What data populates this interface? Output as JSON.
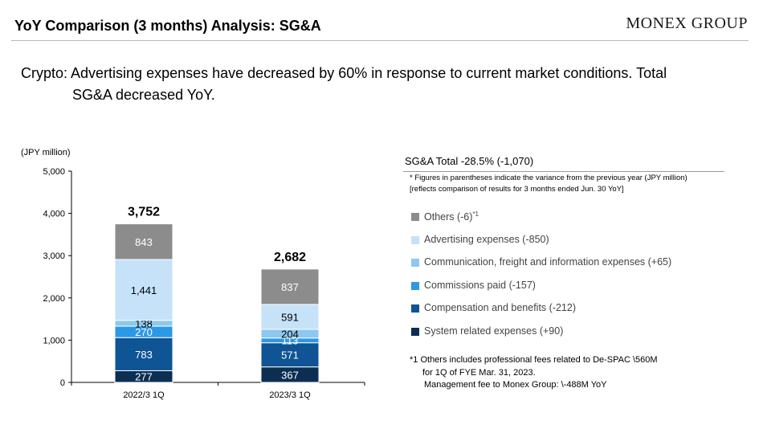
{
  "header": {
    "title": "YoY Comparison (3 months) Analysis: SG&A",
    "logo_text": "MONEX GROUP"
  },
  "message": {
    "line1": "Crypto: Advertising expenses have decreased by 60% in response to current market conditions. Total",
    "line2": "SG&A decreased YoY."
  },
  "summary": {
    "title": "SG&A Total -28.5% (-1,070)",
    "note1": "* Figures in parentheses indicate the variance from the previous year (JPY million)",
    "note2": "[reflects comparison of results for 3 months ended Jun. 30 YoY]"
  },
  "legend": [
    {
      "label": "Others (-6)",
      "sup": "*1",
      "color": "#8c8c8c"
    },
    {
      "label": "Advertising expenses (-850)",
      "sup": "",
      "color": "#c5e2f9"
    },
    {
      "label": "Communication, freight and information expenses (+65)",
      "sup": "",
      "color": "#8cc8f0"
    },
    {
      "label": "Commissions paid (-157)",
      "sup": "",
      "color": "#2b99e6"
    },
    {
      "label": "Compensation and benefits (-212)",
      "sup": "",
      "color": "#0f5494"
    },
    {
      "label": "System related expenses (+90)",
      "sup": "",
      "color": "#0c2e52"
    }
  ],
  "footnote": {
    "line1": "*1 Others includes professional fees related to De-SPAC \\560M",
    "line2": "for 1Q of FYE Mar. 31, 2023.",
    "line3": "Management fee to Monex Group: \\-488M YoY"
  },
  "chart_data": {
    "type": "bar",
    "stacked": true,
    "unit_label": "(JPY million)",
    "categories": [
      "2022/3 1Q",
      "2023/3 1Q"
    ],
    "series": [
      {
        "name": "System related expenses",
        "values": [
          277,
          367
        ],
        "color": "#0c2e52",
        "label_color": "#ffffff"
      },
      {
        "name": "Compensation and benefits",
        "values": [
          783,
          571
        ],
        "color": "#0f5494",
        "label_color": "#ffffff"
      },
      {
        "name": "Commissions paid",
        "values": [
          270,
          113
        ],
        "color": "#2b99e6",
        "label_color": "#ffffff"
      },
      {
        "name": "Communication, freight and information expenses",
        "values": [
          138,
          204
        ],
        "color": "#8cc8f0",
        "label_color": "#000000"
      },
      {
        "name": "Advertising expenses",
        "values": [
          1441,
          591
        ],
        "color": "#c5e2f9",
        "label_color": "#000000"
      },
      {
        "name": "Others",
        "values": [
          843,
          837
        ],
        "color": "#8c8c8c",
        "label_color": "#ffffff"
      }
    ],
    "value_labels": [
      [
        "277",
        "367"
      ],
      [
        "783",
        "571"
      ],
      [
        "270",
        "113"
      ],
      [
        "138",
        "204"
      ],
      [
        "1,441",
        "591"
      ],
      [
        "843",
        "837"
      ]
    ],
    "totals": [
      3752,
      2682
    ],
    "total_labels": [
      "3,752",
      "2,682"
    ],
    "ylim": [
      0,
      5000
    ],
    "yticks": [
      0,
      1000,
      2000,
      3000,
      4000,
      5000
    ],
    "ytick_labels": [
      "0",
      "1,000",
      "2,000",
      "3,000",
      "4,000",
      "5,000"
    ],
    "grid": false,
    "legend_position": "right"
  }
}
